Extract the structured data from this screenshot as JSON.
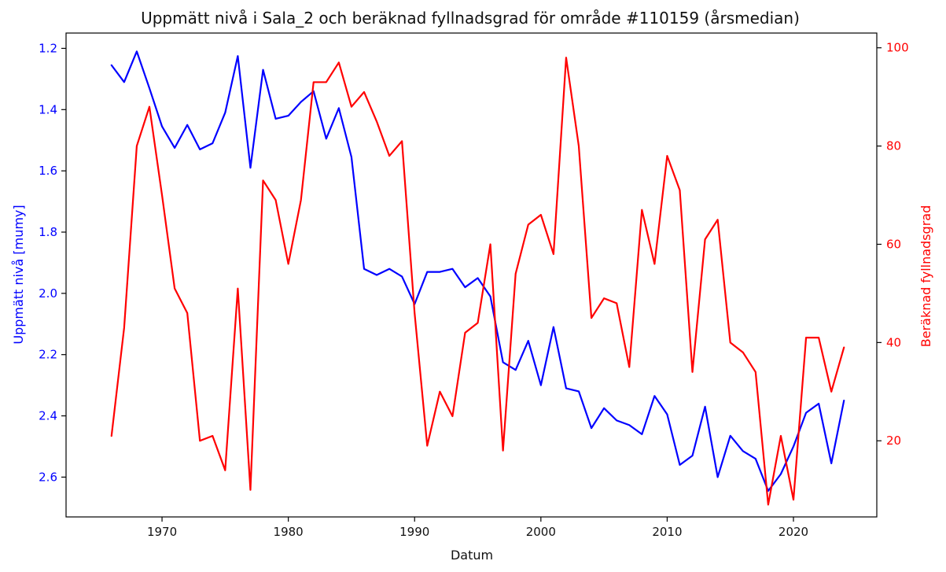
{
  "chart_data": {
    "type": "line",
    "title": "Uppmätt nivå i Sala_2 och beräknad fyllnadsgrad för område #110159 (årsmedian)",
    "xlabel": "Datum",
    "ylabel_left": "Uppmätt nivå [mumy]",
    "ylabel_right": "Beräknad fyllnadsgrad",
    "xlim": [
      1962.4,
      1926.6
    ],
    "xticks": [
      1970,
      1980,
      1990,
      2000,
      2010,
      2020
    ],
    "ylim_left": [
      2.73,
      1.15
    ],
    "ylim_left_inverted": true,
    "yticks_left": [
      1.2,
      1.4,
      1.6,
      1.8,
      2.0,
      2.2,
      2.4,
      2.6
    ],
    "ylim_right": [
      4.5,
      103
    ],
    "yticks_right": [
      20,
      40,
      60,
      80,
      100
    ],
    "grid": false,
    "x": [
      1966,
      1967,
      1968,
      1969,
      1970,
      1971,
      1972,
      1973,
      1974,
      1975,
      1976,
      1977,
      1978,
      1979,
      1980,
      1981,
      1982,
      1983,
      1984,
      1985,
      1986,
      1987,
      1988,
      1989,
      1990,
      1991,
      1992,
      1993,
      1994,
      1995,
      1996,
      1997,
      1998,
      1999,
      2000,
      2001,
      2002,
      2003,
      2004,
      2005,
      2006,
      2007,
      2008,
      2009,
      2010,
      2011,
      2012,
      2013,
      2014,
      2015,
      2016,
      2017,
      2018,
      2019,
      2020,
      2021,
      2022,
      2023,
      2024
    ],
    "series": [
      {
        "name": "Uppmätt nivå",
        "axis": "left",
        "color": "#0000ff",
        "values": [
          1.255,
          1.31,
          1.21,
          1.33,
          1.455,
          1.525,
          1.45,
          1.53,
          1.51,
          1.41,
          1.225,
          1.59,
          1.27,
          1.43,
          1.42,
          1.375,
          1.34,
          1.495,
          1.395,
          1.555,
          1.92,
          1.94,
          1.92,
          1.945,
          2.035,
          1.93,
          1.93,
          1.92,
          1.98,
          1.95,
          2.01,
          2.225,
          2.25,
          2.155,
          2.3,
          2.11,
          2.31,
          2.32,
          2.44,
          2.375,
          2.415,
          2.43,
          2.46,
          2.335,
          2.395,
          2.56,
          2.53,
          2.37,
          2.6,
          2.465,
          2.515,
          2.54,
          2.645,
          2.59,
          2.5,
          2.39,
          2.36,
          2.555,
          2.35
        ]
      },
      {
        "name": "Beräknad fyllnadsgrad",
        "axis": "right",
        "color": "#ff0000",
        "values": [
          21,
          43,
          80,
          88,
          70,
          51,
          46,
          20,
          21,
          14,
          51,
          10,
          73,
          69,
          56,
          69,
          93,
          93,
          97,
          88,
          91,
          85,
          78,
          81,
          46,
          19,
          30,
          25,
          42,
          44,
          60,
          18,
          54,
          64,
          66,
          58,
          98,
          80,
          45,
          49,
          48,
          35,
          67,
          56,
          78,
          71,
          34,
          61,
          65,
          40,
          38,
          34,
          7,
          21,
          8,
          41,
          41,
          30,
          39
        ]
      }
    ]
  }
}
